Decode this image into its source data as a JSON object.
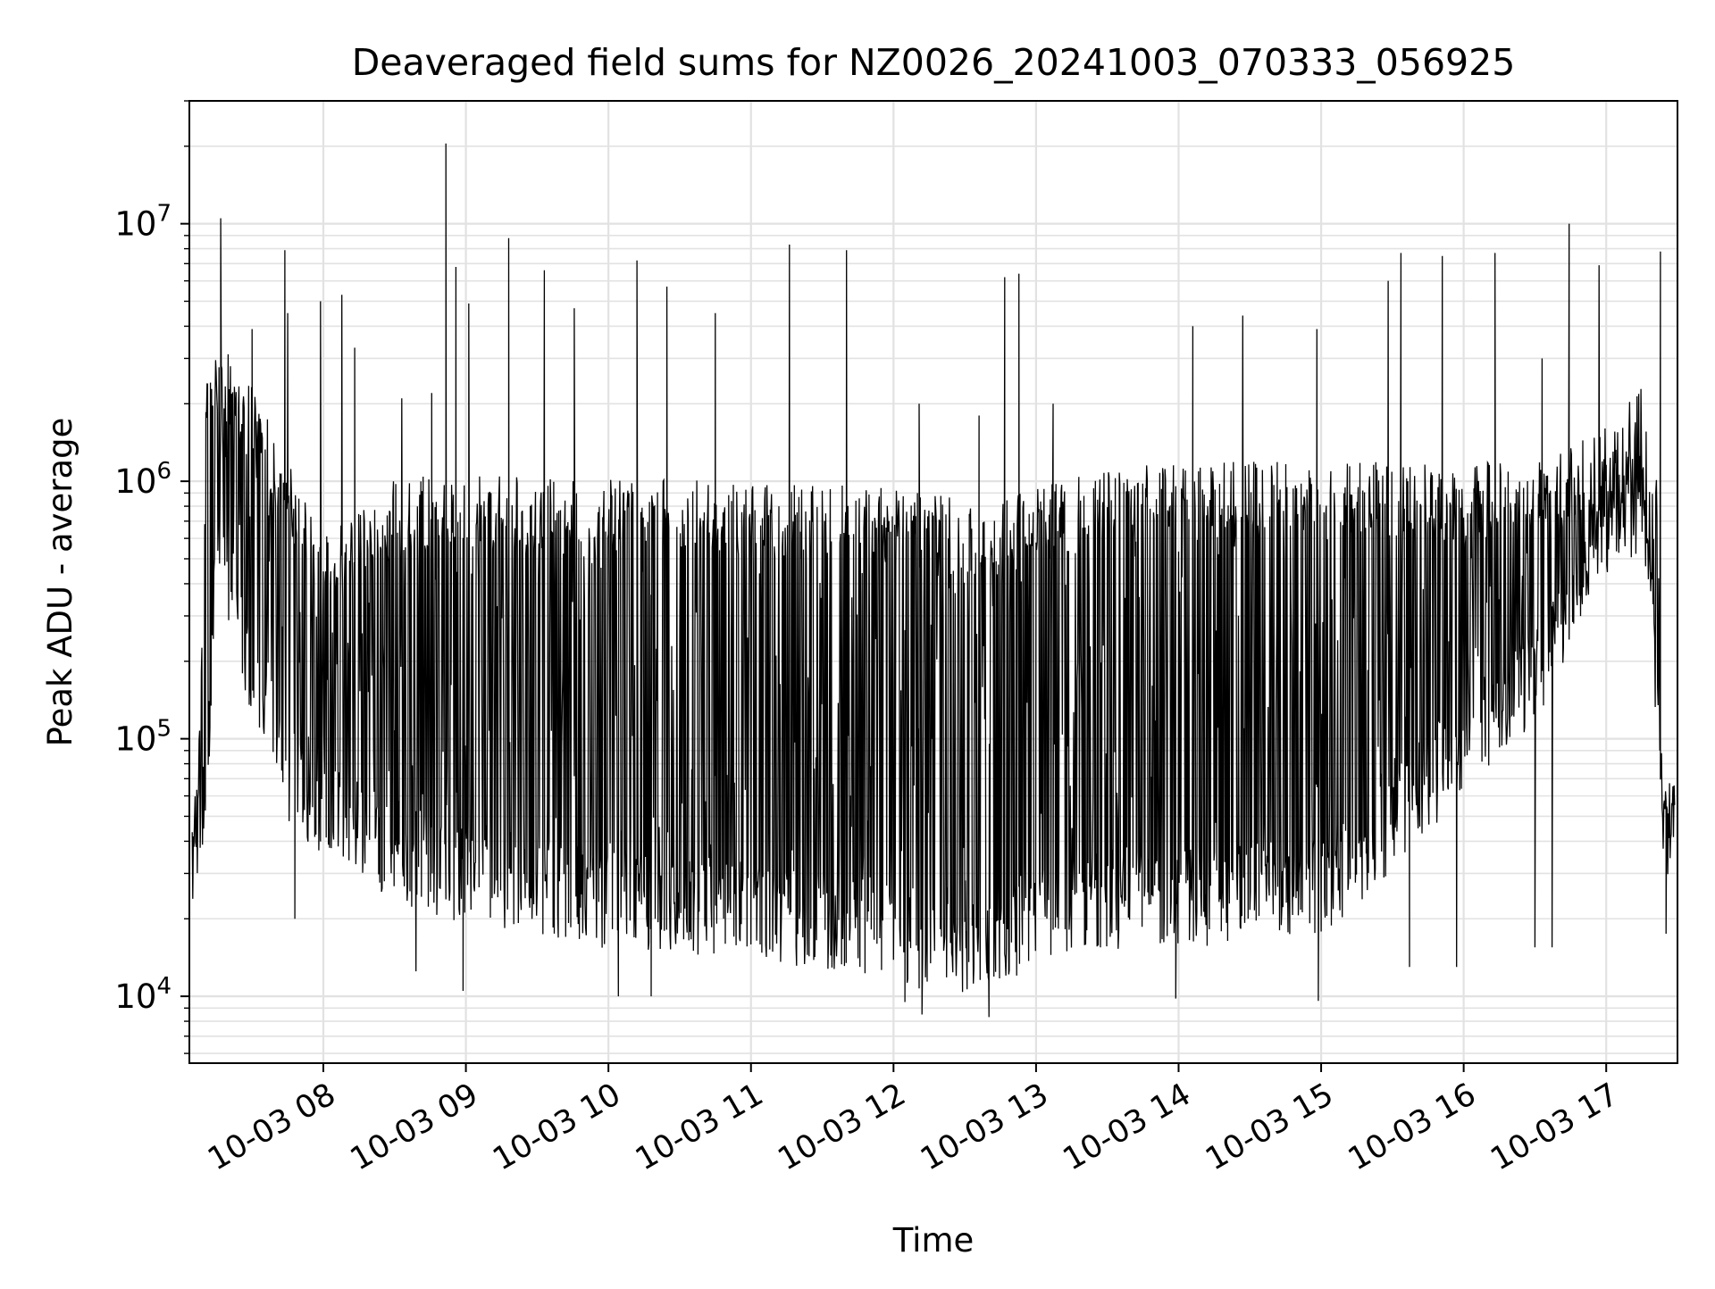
{
  "chart_data": {
    "type": "line",
    "title": "Deaveraged field sums for NZ0026_20241003_070333_056925",
    "xlabel": "Time",
    "ylabel": "Peak ADU - average",
    "yscale": "log",
    "ylim": [
      5500,
      30000000
    ],
    "xlim_hours": [
      7.06,
      17.5
    ],
    "grid": true,
    "x_ticks": [
      {
        "hour": 8,
        "label": "10-03 08"
      },
      {
        "hour": 9,
        "label": "10-03 09"
      },
      {
        "hour": 10,
        "label": "10-03 10"
      },
      {
        "hour": 11,
        "label": "10-03 11"
      },
      {
        "hour": 12,
        "label": "10-03 12"
      },
      {
        "hour": 13,
        "label": "10-03 13"
      },
      {
        "hour": 14,
        "label": "10-03 14"
      },
      {
        "hour": 15,
        "label": "10-03 15"
      },
      {
        "hour": 16,
        "label": "10-03 16"
      },
      {
        "hour": 17,
        "label": "10-03 17"
      }
    ],
    "y_ticks": [
      {
        "value": 10000,
        "base": "10",
        "exp": "4"
      },
      {
        "value": 100000,
        "base": "10",
        "exp": "5"
      },
      {
        "value": 1000000,
        "base": "10",
        "exp": "6"
      },
      {
        "value": 10000000,
        "base": "10",
        "exp": "7"
      }
    ],
    "series": [
      {
        "name": "Peak ADU - average",
        "color": "#000000",
        "profile": {
          "hour": [
            7.06,
            7.12,
            7.18,
            7.25,
            7.5,
            7.75,
            8.0,
            8.5,
            9.0,
            10.0,
            11.0,
            12.0,
            12.6,
            13.0,
            13.5,
            14.0,
            15.0,
            15.5,
            16.0,
            16.5,
            16.8,
            17.0,
            17.25,
            17.35,
            17.4,
            17.5
          ],
          "typical_low": [
            25000,
            40000,
            45000,
            600000,
            150000,
            60000,
            45000,
            30000,
            25000,
            20000,
            18000,
            15000,
            12000,
            18000,
            20000,
            20000,
            22000,
            40000,
            80000,
            150000,
            300000,
            500000,
            700000,
            150000,
            35000,
            45000
          ],
          "typical_high": [
            50000,
            60000,
            2000000,
            3000000,
            2000000,
            1000000,
            500000,
            900000,
            900000,
            850000,
            850000,
            800000,
            700000,
            800000,
            950000,
            1000000,
            1000000,
            1000000,
            1000000,
            1000000,
            1200000,
            1500000,
            2000000,
            1000000,
            60000,
            55000
          ]
        },
        "spikes": [
          {
            "hour": 7.28,
            "value": 10500000
          },
          {
            "hour": 7.5,
            "value": 3900000
          },
          {
            "hour": 7.73,
            "value": 7900000
          },
          {
            "hour": 7.75,
            "value": 4500000
          },
          {
            "hour": 7.98,
            "value": 5000000
          },
          {
            "hour": 8.13,
            "value": 5300000
          },
          {
            "hour": 8.22,
            "value": 3300000
          },
          {
            "hour": 8.55,
            "value": 2100000
          },
          {
            "hour": 8.76,
            "value": 2200000
          },
          {
            "hour": 8.86,
            "value": 20500000
          },
          {
            "hour": 8.93,
            "value": 6800000
          },
          {
            "hour": 9.02,
            "value": 4900000
          },
          {
            "hour": 9.3,
            "value": 8800000
          },
          {
            "hour": 9.55,
            "value": 6600000
          },
          {
            "hour": 9.76,
            "value": 4700000
          },
          {
            "hour": 10.2,
            "value": 7200000
          },
          {
            "hour": 10.41,
            "value": 5700000
          },
          {
            "hour": 10.75,
            "value": 4500000
          },
          {
            "hour": 11.27,
            "value": 8300000
          },
          {
            "hour": 11.67,
            "value": 7900000
          },
          {
            "hour": 12.18,
            "value": 2000000
          },
          {
            "hour": 12.6,
            "value": 1800000
          },
          {
            "hour": 12.78,
            "value": 6200000
          },
          {
            "hour": 12.88,
            "value": 6400000
          },
          {
            "hour": 13.12,
            "value": 2000000
          },
          {
            "hour": 14.1,
            "value": 4000000
          },
          {
            "hour": 14.45,
            "value": 4400000
          },
          {
            "hour": 14.97,
            "value": 3900000
          },
          {
            "hour": 15.47,
            "value": 6000000
          },
          {
            "hour": 15.56,
            "value": 7700000
          },
          {
            "hour": 15.85,
            "value": 7500000
          },
          {
            "hour": 16.22,
            "value": 7700000
          },
          {
            "hour": 16.55,
            "value": 3000000
          },
          {
            "hour": 16.74,
            "value": 10000000
          },
          {
            "hour": 16.95,
            "value": 6900000
          },
          {
            "hour": 17.38,
            "value": 7800000
          }
        ],
        "dips": [
          {
            "hour": 7.8,
            "value": 20000
          },
          {
            "hour": 8.65,
            "value": 12500
          },
          {
            "hour": 8.98,
            "value": 10500
          },
          {
            "hour": 10.07,
            "value": 10000
          },
          {
            "hour": 10.3,
            "value": 10000
          },
          {
            "hour": 12.08,
            "value": 9500
          },
          {
            "hour": 12.2,
            "value": 8500
          },
          {
            "hour": 12.67,
            "value": 8300
          },
          {
            "hour": 13.98,
            "value": 9800
          },
          {
            "hour": 14.98,
            "value": 9600
          },
          {
            "hour": 15.62,
            "value": 13000
          },
          {
            "hour": 15.95,
            "value": 13000
          },
          {
            "hour": 16.5,
            "value": 15500
          },
          {
            "hour": 16.62,
            "value": 15500
          },
          {
            "hour": 17.42,
            "value": 17500
          }
        ]
      }
    ]
  }
}
